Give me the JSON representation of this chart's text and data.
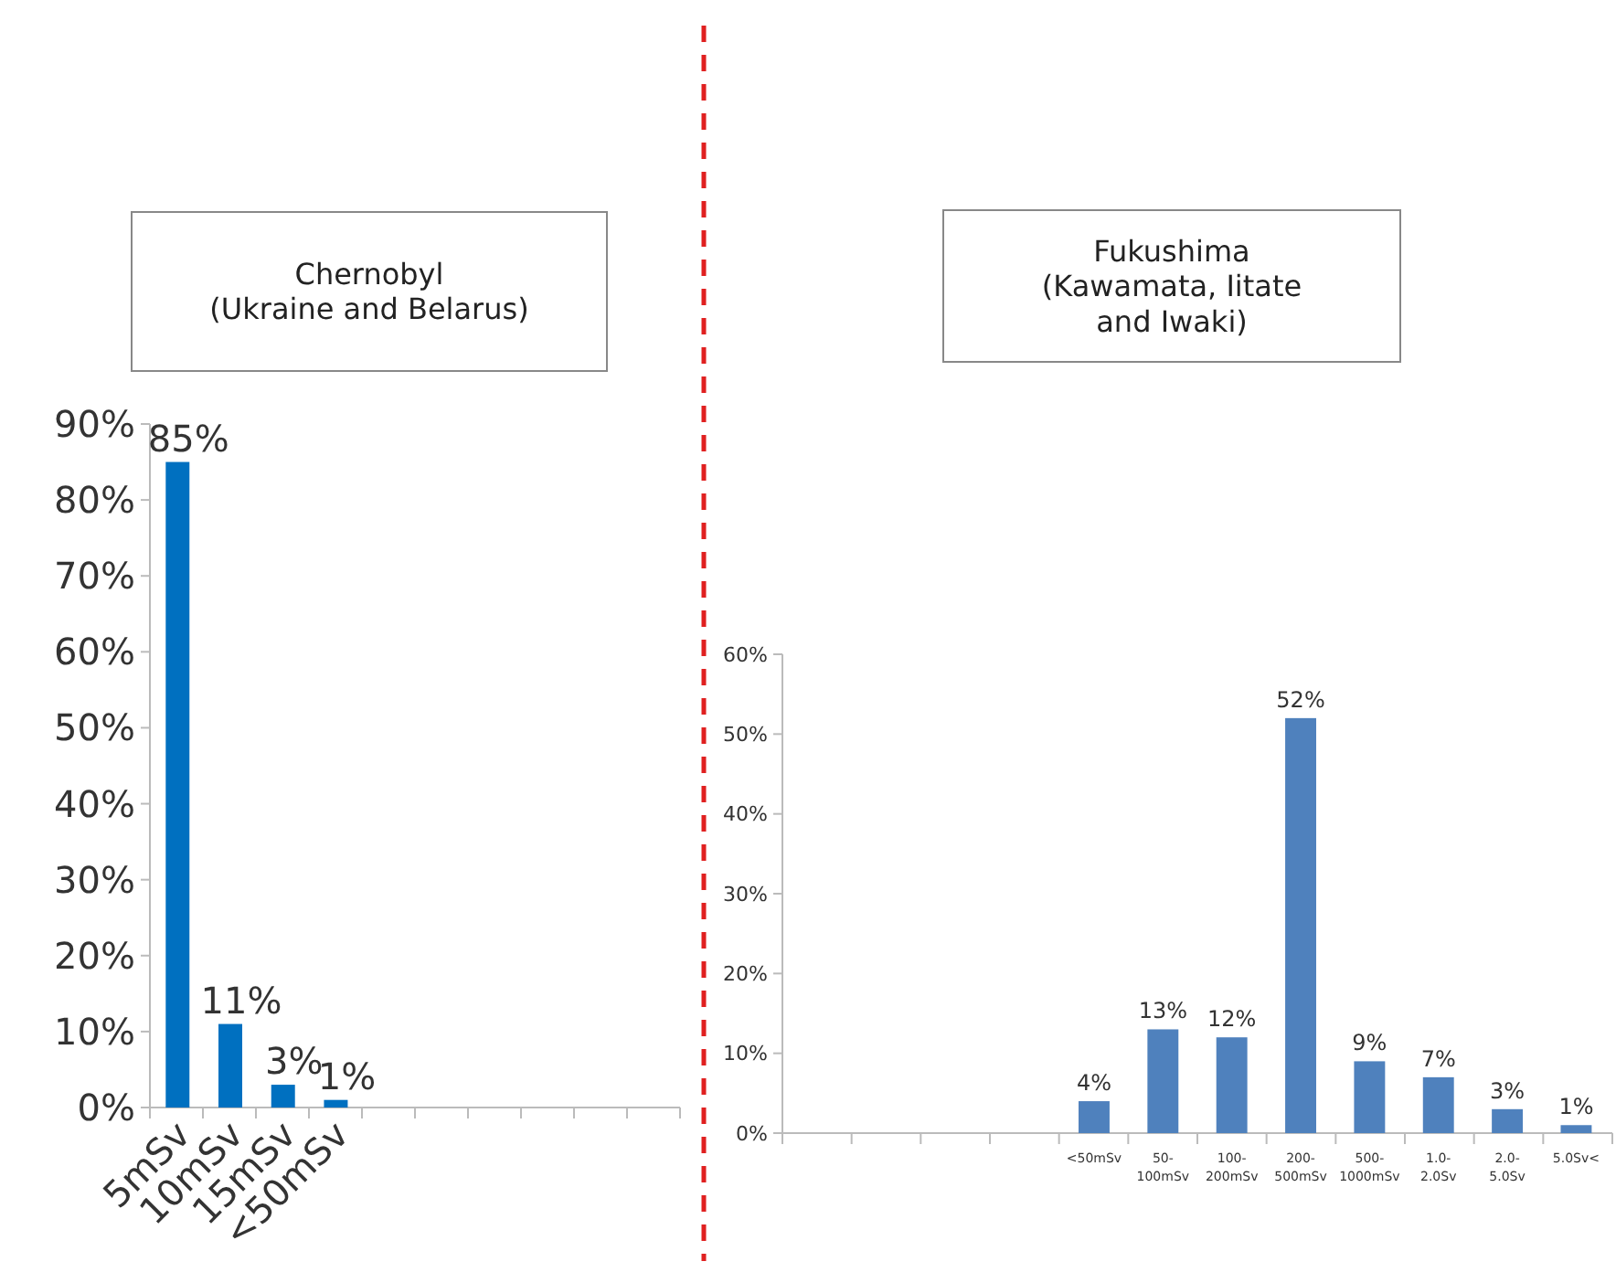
{
  "chart_data": [
    {
      "type": "bar",
      "title": "Chernobyl\n(Ukraine and Belarus)",
      "categories": [
        "5mSv",
        "10mSv",
        "15mSv",
        "<50mSv",
        null,
        null,
        null,
        null,
        null,
        null
      ],
      "values": [
        85,
        11,
        3,
        1,
        null,
        null,
        null,
        null,
        null,
        null
      ],
      "color": "#0070c0",
      "ylim": [
        0,
        90
      ],
      "yticks": [
        {
          "value": 0,
          "label": "0%"
        },
        {
          "value": 10,
          "label": "10%"
        },
        {
          "value": 20,
          "label": "20%"
        },
        {
          "value": 30,
          "label": "30%"
        },
        {
          "value": 40,
          "label": "40%"
        },
        {
          "value": 50,
          "label": "50%"
        },
        {
          "value": 60,
          "label": "60%"
        },
        {
          "value": 70,
          "label": "70%"
        },
        {
          "value": 80,
          "label": "80%"
        },
        {
          "value": 90,
          "label": "90%"
        }
      ],
      "value_labels": [
        "85%",
        "11%",
        "3%",
        "1%",
        null,
        null,
        null,
        null,
        null,
        null
      ],
      "grid": false
    },
    {
      "type": "bar",
      "title": "Fukushima\n(Kawamata, Iitate\nand Iwaki)",
      "categories": [
        null,
        null,
        null,
        null,
        "<50mSv",
        "50-100mSv",
        "100-200mSv",
        "200-500mSv",
        "500-1000mSv",
        "1.0-2.0Sv",
        "2.0-5.0Sv",
        "5.0Sv<"
      ],
      "values": [
        null,
        null,
        null,
        null,
        4,
        13,
        12,
        52,
        9,
        7,
        3,
        1
      ],
      "color": "#4f81bd",
      "ylim": [
        0,
        60
      ],
      "yticks": [
        {
          "value": 0,
          "label": "0%"
        },
        {
          "value": 10,
          "label": "10%"
        },
        {
          "value": 20,
          "label": "20%"
        },
        {
          "value": 30,
          "label": "30%"
        },
        {
          "value": 40,
          "label": "40%"
        },
        {
          "value": 50,
          "label": "50%"
        },
        {
          "value": 60,
          "label": "60%"
        }
      ],
      "value_labels": [
        null,
        null,
        null,
        null,
        "4%",
        "13%",
        "12%",
        "52%",
        "9%",
        "7%",
        "3%",
        "1%"
      ],
      "grid": false
    }
  ]
}
